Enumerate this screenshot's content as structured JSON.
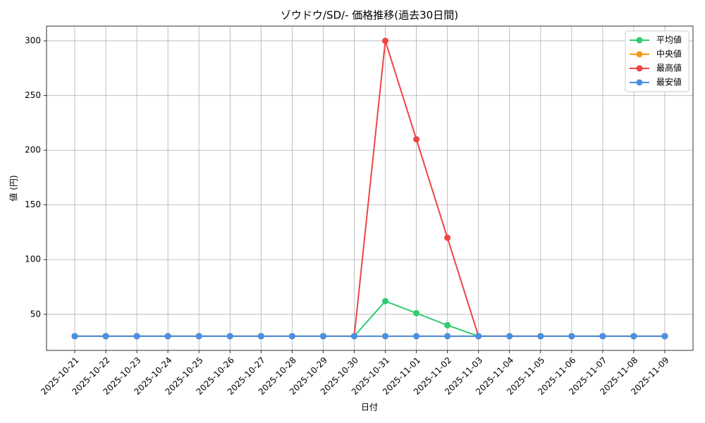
{
  "chart_data": {
    "type": "line",
    "title": "ゾウドウ/SD/- 価格推移(過去30日間)",
    "x_label": "日付",
    "y_label": "値 (円)",
    "categories": [
      "2025-10-21",
      "2025-10-22",
      "2025-10-23",
      "2025-10-24",
      "2025-10-25",
      "2025-10-26",
      "2025-10-27",
      "2025-10-28",
      "2025-10-29",
      "2025-10-30",
      "2025-10-31",
      "2025-11-01",
      "2025-11-02",
      "2025-11-03",
      "2025-11-04",
      "2025-11-05",
      "2025-11-06",
      "2025-11-07",
      "2025-11-08",
      "2025-11-09"
    ],
    "series": [
      {
        "name": "平均値",
        "color": "#2ecc71",
        "values": [
          30,
          30,
          30,
          30,
          30,
          30,
          30,
          30,
          30,
          30,
          62,
          51,
          40,
          30,
          30,
          30,
          30,
          30,
          30,
          30
        ]
      },
      {
        "name": "中央値",
        "color": "#f39c12",
        "values": [
          30,
          30,
          30,
          30,
          30,
          30,
          30,
          30,
          30,
          30,
          30,
          30,
          30,
          30,
          30,
          30,
          30,
          30,
          30,
          30
        ]
      },
      {
        "name": "最高値",
        "color": "#ef4444",
        "values": [
          30,
          30,
          30,
          30,
          30,
          30,
          30,
          30,
          30,
          30,
          300,
          210,
          120,
          30,
          30,
          30,
          30,
          30,
          30,
          30
        ]
      },
      {
        "name": "最安値",
        "color": "#4a90e2",
        "values": [
          30,
          30,
          30,
          30,
          30,
          30,
          30,
          30,
          30,
          30,
          30,
          30,
          30,
          30,
          30,
          30,
          30,
          30,
          30,
          30
        ]
      }
    ],
    "ylim": [
      17,
      313.5
    ],
    "yticks": [
      50,
      100,
      150,
      200,
      250,
      300
    ],
    "grid": true,
    "legend": "upper right"
  }
}
